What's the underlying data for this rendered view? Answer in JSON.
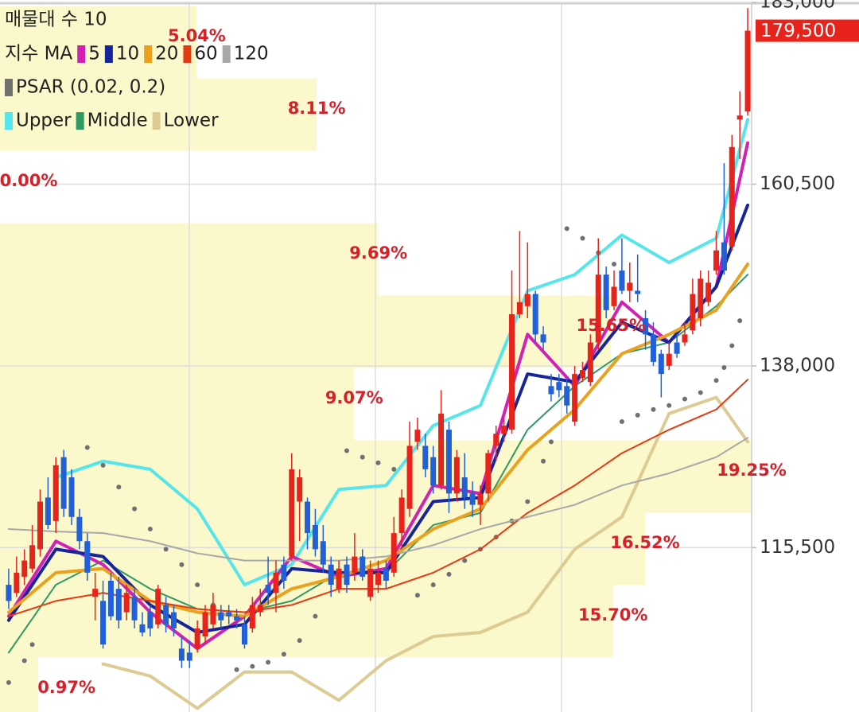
{
  "chart_data": {
    "type": "candlestick",
    "profile_label": "매물대 수 10",
    "ma_label": "지수 MA",
    "up_color": "#e8231c",
    "down_color": "#2160d8",
    "open": [
      110900,
      109900,
      111900,
      112900,
      115300,
      121700,
      118800,
      126700,
      124200,
      119300,
      116300,
      109400,
      108900,
      111400,
      110400,
      107500,
      109400,
      106000,
      107500,
      106000,
      108400,
      107500,
      103000,
      102500,
      103000,
      104500,
      106000,
      107500,
      107500,
      107000,
      106000,
      105500,
      107500,
      110900,
      109900,
      113400,
      114400,
      121200,
      121200,
      118300,
      116300,
      113400,
      110400,
      113400,
      112400,
      114400,
      109400,
      110900,
      112900,
      112400,
      117300,
      120300,
      128600,
      128100,
      126700,
      123200,
      130100,
      122200,
      124200,
      122200,
      120800,
      122200,
      128100,
      129600,
      130100,
      144400,
      145400,
      146900,
      141900,
      135500,
      136000,
      135500,
      131100,
      136500,
      136000,
      140900,
      149300,
      145400,
      149800,
      147300,
      147300,
      143900,
      141900,
      139500,
      138000,
      140900,
      140900,
      142400,
      143900,
      145900,
      149800,
      153300,
      152800,
      168500,
      169500
    ],
    "high": [
      112900,
      114400,
      115300,
      118300,
      122700,
      124200,
      126700,
      127600,
      125200,
      120300,
      117300,
      112400,
      111400,
      112400,
      111900,
      110900,
      110400,
      107500,
      108400,
      110900,
      109400,
      108400,
      104500,
      104000,
      106500,
      108400,
      109900,
      108400,
      108400,
      107900,
      107000,
      109400,
      110400,
      114400,
      113900,
      114400,
      127200,
      125200,
      121700,
      120300,
      118300,
      114400,
      113900,
      114400,
      117300,
      115300,
      113900,
      113900,
      113900,
      119300,
      122700,
      131100,
      131600,
      129600,
      128100,
      135000,
      131100,
      127600,
      127200,
      123700,
      123200,
      127600,
      130600,
      131600,
      149800,
      154700,
      153300,
      147300,
      142900,
      137000,
      137000,
      136500,
      138000,
      138500,
      141900,
      153800,
      150300,
      149800,
      153800,
      150800,
      151800,
      144900,
      143400,
      140000,
      140900,
      141900,
      143400,
      148800,
      149800,
      149800,
      154700,
      163100,
      166600,
      172000,
      182300
    ],
    "low": [
      107900,
      109400,
      110900,
      112400,
      114400,
      117800,
      117300,
      119300,
      118300,
      115300,
      111400,
      106500,
      103000,
      106500,
      105500,
      106500,
      105500,
      104500,
      104500,
      105500,
      105000,
      104500,
      100600,
      100600,
      102500,
      103500,
      105500,
      105500,
      106000,
      105500,
      103000,
      105000,
      107000,
      108400,
      107500,
      110400,
      113900,
      116300,
      115300,
      114400,
      112400,
      109400,
      109900,
      109900,
      111400,
      111400,
      108900,
      109900,
      110400,
      111900,
      115300,
      119300,
      127600,
      124200,
      122200,
      122700,
      119800,
      121200,
      120300,
      119300,
      118300,
      121200,
      126200,
      128600,
      129600,
      143900,
      143900,
      140900,
      140000,
      133600,
      134100,
      132100,
      130600,
      136000,
      135500,
      140000,
      143900,
      144900,
      146900,
      145900,
      145900,
      140000,
      138000,
      134100,
      137500,
      139000,
      140500,
      141900,
      142900,
      145400,
      149300,
      149300,
      152300,
      163600,
      169000
    ],
    "close": [
      108900,
      112400,
      113900,
      115800,
      121200,
      118300,
      125700,
      120300,
      119300,
      116300,
      112400,
      110400,
      103500,
      107000,
      106500,
      109900,
      106500,
      105000,
      105500,
      110400,
      106000,
      105500,
      101500,
      101500,
      105500,
      107500,
      108400,
      106500,
      107000,
      106500,
      103500,
      108400,
      108400,
      109900,
      112400,
      111400,
      125200,
      124200,
      117300,
      115300,
      113400,
      110900,
      112900,
      110900,
      114400,
      111900,
      112900,
      112400,
      111400,
      117300,
      121700,
      128100,
      130100,
      125200,
      123200,
      132100,
      122200,
      126700,
      121700,
      120800,
      122200,
      127200,
      129600,
      130600,
      144400,
      145900,
      146900,
      141900,
      140900,
      134500,
      135000,
      133100,
      137000,
      137500,
      140900,
      149300,
      144900,
      147800,
      147300,
      148300,
      146900,
      141900,
      138500,
      137000,
      139500,
      139500,
      141900,
      146900,
      148800,
      148300,
      152300,
      149800,
      165100,
      169000,
      179500
    ],
    "ylim": [
      95150,
      183300
    ],
    "yticks": [
      {
        "value": 115500,
        "label": "115,500"
      },
      {
        "value": 138000,
        "label": "138,000"
      },
      {
        "value": 160500,
        "label": "160,500"
      },
      {
        "value": 183000,
        "label": "183,000"
      }
    ],
    "grid": true,
    "last_price": {
      "value": 179500,
      "label": "179,500"
    },
    "ma": [
      {
        "name": "5",
        "color": "#d21fb4",
        "x": [
          0,
          6,
          12,
          18,
          24,
          30,
          36,
          42,
          48,
          54,
          60,
          66,
          72,
          78,
          84,
          90,
          94
        ],
        "values": [
          107000,
          116300,
          113400,
          107500,
          103000,
          107000,
          114400,
          111900,
          112900,
          123200,
          122200,
          141900,
          135500,
          145900,
          140900,
          147800,
          165600
        ]
      },
      {
        "name": "10",
        "color": "#17259a",
        "x": [
          0,
          6,
          12,
          18,
          24,
          30,
          36,
          42,
          48,
          54,
          60,
          66,
          72,
          78,
          84,
          90,
          94
        ],
        "values": [
          106500,
          115300,
          114400,
          108400,
          105000,
          106000,
          112900,
          112400,
          112400,
          121200,
          121700,
          137000,
          136000,
          143400,
          140900,
          147800,
          157900
        ]
      },
      {
        "name": "20",
        "color": "#e9a11e",
        "x": [
          0,
          6,
          12,
          18,
          24,
          30,
          36,
          42,
          48,
          54,
          60,
          66,
          72,
          78,
          84,
          90,
          94
        ],
        "values": [
          107500,
          112400,
          112900,
          108900,
          107500,
          107000,
          110400,
          111900,
          113900,
          117800,
          120300,
          127600,
          132600,
          139500,
          141900,
          144900,
          150600
        ]
      },
      {
        "name": "60",
        "color": "#e53a12",
        "x": [
          0,
          6,
          12,
          18,
          24,
          30,
          36,
          42,
          48,
          54,
          60,
          66,
          72,
          78,
          84,
          90,
          94
        ],
        "values": [
          107000,
          108900,
          109900,
          108900,
          107900,
          107500,
          108400,
          110400,
          110400,
          112400,
          115300,
          119800,
          123200,
          127200,
          130100,
          132600,
          136300
        ]
      },
      {
        "name": "120",
        "color": "#a8a8a8",
        "x": [
          0,
          6,
          12,
          18,
          24,
          30,
          36,
          42,
          48,
          54,
          60,
          66,
          72,
          78,
          84,
          90,
          94
        ],
        "values": [
          117800,
          117500,
          117300,
          116300,
          114800,
          113900,
          113900,
          113900,
          114400,
          115800,
          117800,
          119300,
          120800,
          123200,
          124700,
          126700,
          129100
        ]
      }
    ],
    "psar": {
      "name": "PSAR (0.02, 0.2)",
      "color": "#707070",
      "x": [
        0,
        2,
        3,
        10,
        12,
        14,
        16,
        18,
        20,
        22,
        24,
        26,
        29,
        31,
        33,
        35,
        37,
        39,
        43,
        45,
        47,
        49,
        51,
        52,
        54,
        56,
        58,
        60,
        62,
        64,
        66,
        68,
        69,
        71,
        73,
        75,
        77,
        78,
        80,
        82,
        84,
        86,
        88,
        90,
        91,
        92,
        93
      ],
      "values": [
        98800,
        101500,
        103500,
        127900,
        125700,
        123000,
        120300,
        117800,
        115300,
        113400,
        110900,
        108400,
        100400,
        100800,
        101300,
        102300,
        104000,
        107000,
        127500,
        126700,
        126000,
        125200,
        124400,
        109600,
        110900,
        112200,
        113900,
        115300,
        116800,
        118800,
        121200,
        126200,
        128600,
        155000,
        153800,
        152000,
        150600,
        131100,
        131900,
        132600,
        133100,
        133900,
        134700,
        136200,
        137800,
        140500,
        143600
      ]
    },
    "bands": [
      {
        "name": "Upper",
        "color": "#55e6ec",
        "x": [
          0,
          6,
          12,
          18,
          24,
          30,
          36,
          42,
          48,
          54,
          60,
          66,
          72,
          78,
          84,
          90,
          94
        ],
        "values": [
          null,
          124200,
          126200,
          125200,
          120300,
          110900,
          113400,
          122700,
          123200,
          130600,
          133100,
          147300,
          149300,
          154200,
          150800,
          153800,
          168500
        ]
      },
      {
        "name": "Middle",
        "color": "#2f9a62",
        "x": [
          0,
          6,
          12,
          18,
          24,
          30,
          36,
          42,
          48,
          54,
          60,
          66,
          72,
          78,
          84,
          90,
          94
        ],
        "values": [
          102500,
          110900,
          113900,
          110400,
          107900,
          107500,
          108900,
          112400,
          112400,
          118300,
          119800,
          130100,
          135500,
          139500,
          140900,
          145400,
          149300
        ]
      },
      {
        "name": "Lower",
        "color": "#dccb92",
        "x": [
          0,
          6,
          12,
          18,
          24,
          30,
          36,
          42,
          48,
          54,
          60,
          66,
          72,
          78,
          84,
          90,
          94
        ],
        "values": [
          null,
          null,
          101100,
          99600,
          95600,
          100100,
          100100,
          96600,
          101500,
          104500,
          105000,
          107500,
          115300,
          119300,
          132100,
          134100,
          128600
        ]
      }
    ],
    "volume_profile": {
      "color": "rgba(249,244,168,0.6)",
      "bins": [
        92950,
        101910,
        110870,
        119830,
        128790,
        137750,
        146710,
        155670,
        164630,
        173590,
        182550
      ],
      "values": [
        0.97,
        15.7,
        16.52,
        19.25,
        9.07,
        15.65,
        9.69,
        0.0,
        8.11,
        5.04
      ],
      "value_labels": [
        "0.97%",
        "15.70%",
        "16.52%",
        "19.25%",
        "9.07%",
        "15.65%",
        "9.69%",
        "0.00%",
        "8.11%",
        "5.04%"
      ]
    }
  }
}
